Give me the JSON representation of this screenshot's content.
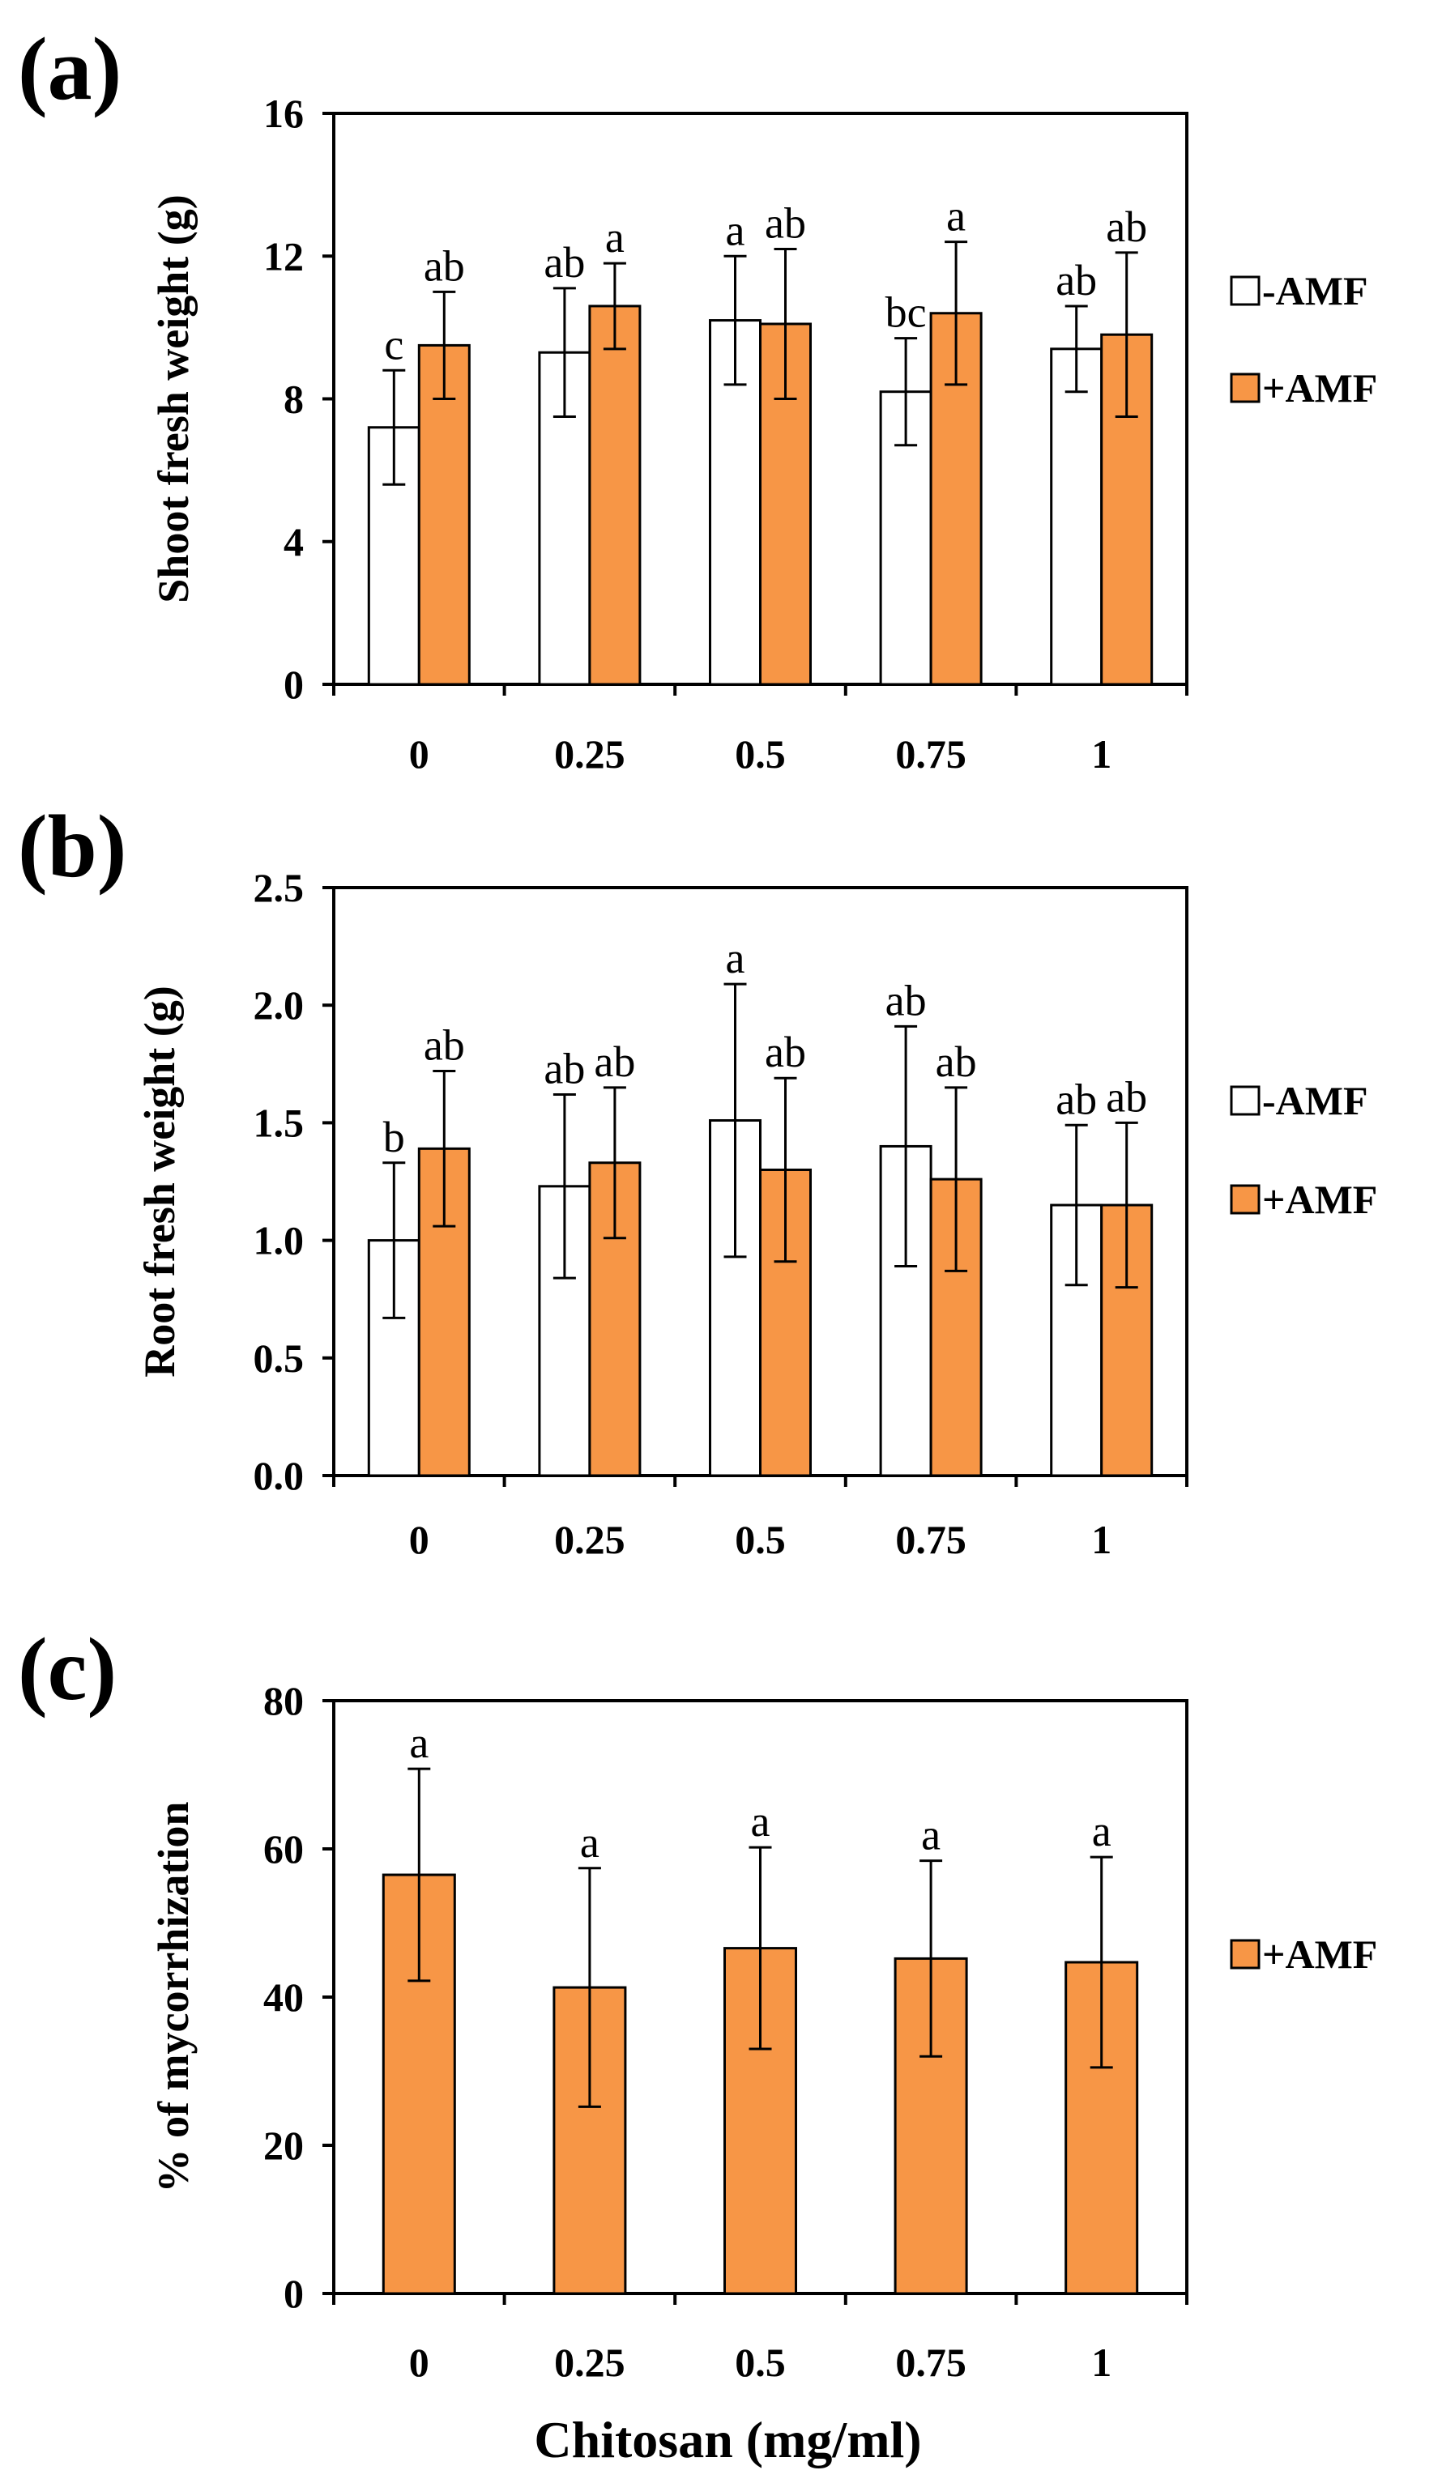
{
  "chart_data": [
    {
      "type": "bar",
      "panel_label": "(a)",
      "title": "",
      "xlabel": "",
      "ylabel": "Shoot fresh weight (g)",
      "categories": [
        "0",
        "0.25",
        "0.5",
        "0.75",
        "1"
      ],
      "ylim": [
        0,
        16
      ],
      "yticks": [
        "0",
        "4",
        "8",
        "12",
        "16"
      ],
      "grid": false,
      "legend_position": "right",
      "series": [
        {
          "name": "-AMF",
          "color": "#ffffff",
          "values": [
            7.2,
            9.3,
            10.2,
            8.2,
            9.4
          ],
          "errors": [
            1.6,
            1.8,
            1.8,
            1.5,
            1.2
          ],
          "letters": [
            "c",
            "ab",
            "a",
            "bc",
            "ab"
          ]
        },
        {
          "name": "+AMF",
          "color": "#f79646",
          "values": [
            9.5,
            10.6,
            10.1,
            10.4,
            9.8
          ],
          "errors": [
            1.5,
            1.2,
            2.1,
            2.0,
            2.3
          ],
          "letters": [
            "ab",
            "a",
            "ab",
            "a",
            "ab"
          ]
        }
      ]
    },
    {
      "type": "bar",
      "panel_label": "(b)",
      "title": "",
      "xlabel": "",
      "ylabel": "Root fresh weight (g)",
      "categories": [
        "0",
        "0.25",
        "0.5",
        "0.75",
        "1"
      ],
      "ylim": [
        0,
        2.5
      ],
      "yticks": [
        "0.0",
        "0.5",
        "1.0",
        "1.5",
        "2.0",
        "2.5"
      ],
      "grid": false,
      "legend_position": "right",
      "series": [
        {
          "name": "-AMF",
          "color": "#ffffff",
          "values": [
            1.0,
            1.23,
            1.51,
            1.4,
            1.15
          ],
          "errors": [
            0.33,
            0.39,
            0.58,
            0.51,
            0.34
          ],
          "letters": [
            "b",
            "ab",
            "a",
            "ab",
            "ab"
          ]
        },
        {
          "name": "+AMF",
          "color": "#f79646",
          "values": [
            1.39,
            1.33,
            1.3,
            1.26,
            1.15
          ],
          "errors": [
            0.33,
            0.32,
            0.39,
            0.39,
            0.35
          ],
          "letters": [
            "ab",
            "ab",
            "ab",
            "ab",
            "ab"
          ]
        }
      ]
    },
    {
      "type": "bar",
      "panel_label": "(c)",
      "title": "",
      "xlabel": "Chitosan (mg/ml)",
      "ylabel": "% of mycorrhization",
      "categories": [
        "0",
        "0.25",
        "0.5",
        "0.75",
        "1"
      ],
      "ylim": [
        0,
        80
      ],
      "yticks": [
        "0",
        "20",
        "40",
        "60",
        "80"
      ],
      "grid": false,
      "legend_position": "right",
      "series": [
        {
          "name": "+AMF",
          "color": "#f79646",
          "values": [
            56.5,
            41.3,
            46.6,
            45.2,
            44.7
          ],
          "errors": [
            14.3,
            16.1,
            13.6,
            13.2,
            14.2
          ],
          "letters": [
            "a",
            "a",
            "a",
            "a",
            "a"
          ]
        }
      ]
    }
  ]
}
